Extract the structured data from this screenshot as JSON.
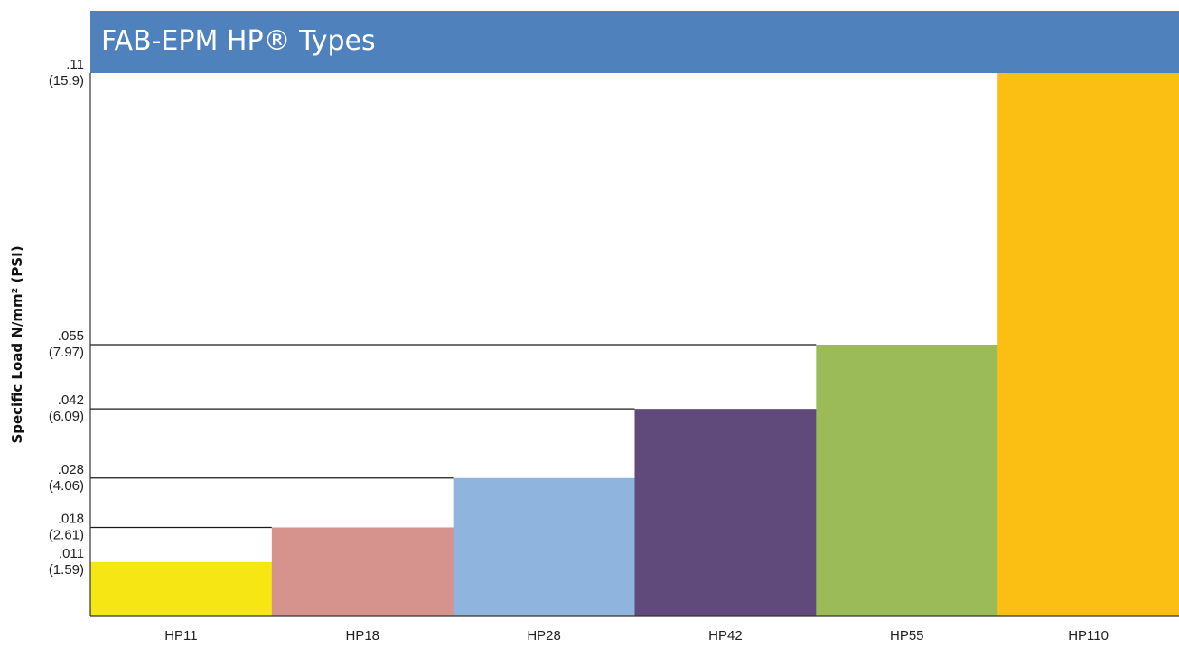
{
  "chart_data": {
    "type": "bar",
    "title": "FAB-EPM HP® Types",
    "ylabel": "Specific Load N/mm² (PSI)",
    "xlabel": "",
    "categories": [
      "HP11",
      "HP18",
      "HP28",
      "HP42",
      "HP55",
      "HP110"
    ],
    "values": [
      0.011,
      0.018,
      0.028,
      0.042,
      0.055,
      0.11
    ],
    "values_psi": [
      1.59,
      2.61,
      4.06,
      6.09,
      7.97,
      15.9
    ],
    "ylim": [
      0,
      0.11
    ],
    "grid": false,
    "colors": [
      "#f5e614",
      "#d6938d",
      "#8fb4de",
      "#604a7b",
      "#9bbb59",
      "#fbbf14"
    ],
    "title_bar_color": "#4f81bd",
    "y_ticks": [
      {
        "value": 0.011,
        "label": ".011",
        "sub": "(1.59)"
      },
      {
        "value": 0.018,
        "label": ".018",
        "sub": "(2.61)"
      },
      {
        "value": 0.028,
        "label": ".028",
        "sub": "(4.06)"
      },
      {
        "value": 0.042,
        "label": ".042",
        "sub": "(6.09)"
      },
      {
        "value": 0.055,
        "label": ".055",
        "sub": "(7.97)"
      },
      {
        "value": 0.11,
        "label": ".11",
        "sub": "(15.9)"
      }
    ]
  }
}
